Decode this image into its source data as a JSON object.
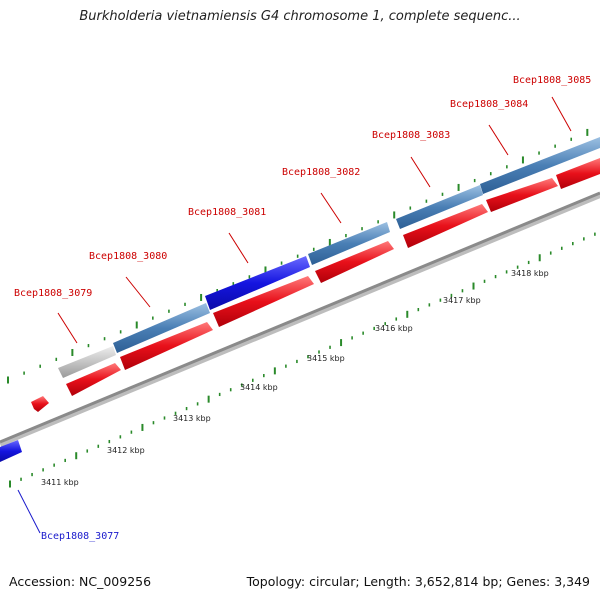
{
  "title": "Burkholderia vietnamiensis G4 chromosome 1, complete sequenc...",
  "footer": {
    "accession": "Accession: NC_009256",
    "summary": "Topology: circular; Length: 3,652,814 bp; Genes: 3,349"
  },
  "colors": {
    "forward_gene": "#e8101a",
    "reverse_gene": "#4a7fb5",
    "selected_gene": "#1515e0",
    "pseudo_gene": "#c4c4c4",
    "backbone": "#8a8a8a",
    "tick": "#2a8a2a",
    "label_red": "#cc0000",
    "label_blue": "#1a1acc"
  },
  "scale_labels": [
    "3411 kbp",
    "3412 kbp",
    "3413 kbp",
    "3414 kbp",
    "3415 kbp",
    "3416 kbp",
    "3417 kbp",
    "3418 kbp"
  ],
  "gene_labels": [
    {
      "name": "Bcep1808_3077",
      "color": "blue"
    },
    {
      "name": "Bcep1808_3079",
      "color": "red"
    },
    {
      "name": "Bcep1808_3080",
      "color": "red"
    },
    {
      "name": "Bcep1808_3081",
      "color": "red"
    },
    {
      "name": "Bcep1808_3082",
      "color": "red"
    },
    {
      "name": "Bcep1808_3083",
      "color": "red"
    },
    {
      "name": "Bcep1808_3084",
      "color": "red"
    },
    {
      "name": "Bcep1808_3085",
      "color": "red"
    }
  ]
}
